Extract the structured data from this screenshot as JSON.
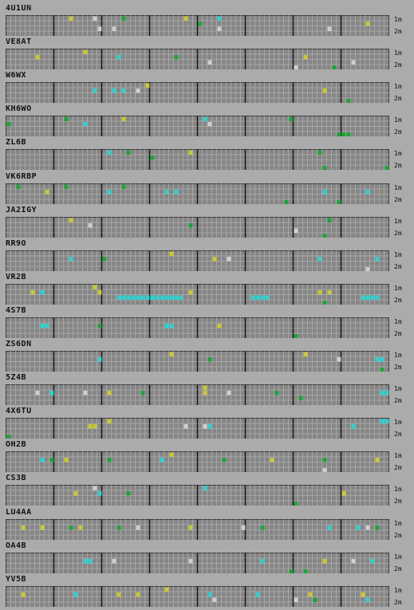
{
  "colors": {
    "cell": "#868686",
    "cell_line": "#a6a6a6",
    "group_divider": "#141414",
    "yellow": "#c9c934",
    "cyan": "#2ed0d0",
    "green": "#21a23a",
    "pale": "#d0d0d0",
    "dark_green": "#0e7a3a"
  },
  "bands": [
    "1m",
    "2m"
  ],
  "stations": [
    {
      "call": "4U1UN",
      "marks": [
        [
          13,
          0,
          "y"
        ],
        [
          18,
          0,
          "p"
        ],
        [
          24,
          0,
          "g"
        ],
        [
          37,
          0,
          "y"
        ],
        [
          40,
          1,
          "g"
        ],
        [
          44,
          0,
          "c"
        ],
        [
          19,
          2,
          "p"
        ],
        [
          22,
          2,
          "p"
        ],
        [
          44,
          2,
          "p"
        ],
        [
          67,
          2,
          "p"
        ],
        [
          75,
          1,
          "y"
        ]
      ]
    },
    {
      "call": "VE8AT",
      "marks": [
        [
          6,
          1,
          "y"
        ],
        [
          16,
          0,
          "y"
        ],
        [
          23,
          1,
          "c"
        ],
        [
          35,
          1,
          "g"
        ],
        [
          42,
          2,
          "p"
        ],
        [
          62,
          1,
          "y"
        ],
        [
          72,
          2,
          "p"
        ],
        [
          60,
          3,
          "p"
        ],
        [
          68,
          3,
          "g"
        ]
      ]
    },
    {
      "call": "W6WX",
      "marks": [
        [
          18,
          1,
          "c"
        ],
        [
          22,
          1,
          "c"
        ],
        [
          24,
          1,
          "c"
        ],
        [
          27,
          1,
          "p"
        ],
        [
          29,
          0,
          "y"
        ],
        [
          66,
          1,
          "y"
        ],
        [
          71,
          3,
          "g"
        ]
      ]
    },
    {
      "call": "KH6WO",
      "marks": [
        [
          0,
          1,
          "g"
        ],
        [
          12,
          0,
          "g"
        ],
        [
          16,
          1,
          "c"
        ],
        [
          24,
          0,
          "y"
        ],
        [
          41,
          0,
          "c"
        ],
        [
          42,
          1,
          "p"
        ],
        [
          59,
          0,
          "g"
        ],
        [
          69,
          3,
          "g"
        ],
        [
          70,
          3,
          "g"
        ],
        [
          71,
          3,
          "g"
        ]
      ]
    },
    {
      "call": "ZL6B",
      "marks": [
        [
          21,
          0,
          "c"
        ],
        [
          25,
          0,
          "g"
        ],
        [
          30,
          1,
          "g"
        ],
        [
          38,
          0,
          "y"
        ],
        [
          65,
          0,
          "g"
        ],
        [
          66,
          3,
          "g"
        ],
        [
          79,
          3,
          "g"
        ]
      ]
    },
    {
      "call": "VK6RBP",
      "marks": [
        [
          2,
          0,
          "g"
        ],
        [
          8,
          1,
          "y"
        ],
        [
          12,
          0,
          "g"
        ],
        [
          21,
          1,
          "c"
        ],
        [
          24,
          0,
          "g"
        ],
        [
          33,
          1,
          "c"
        ],
        [
          35,
          1,
          "c"
        ],
        [
          58,
          3,
          "g"
        ],
        [
          66,
          1,
          "c"
        ],
        [
          69,
          3,
          "g"
        ],
        [
          75,
          1,
          "c"
        ]
      ]
    },
    {
      "call": "JA2IGY",
      "marks": [
        [
          13,
          0,
          "y"
        ],
        [
          17,
          1,
          "p"
        ],
        [
          38,
          1,
          "g"
        ],
        [
          67,
          0,
          "g"
        ],
        [
          66,
          3,
          "g"
        ],
        [
          60,
          2,
          "p"
        ]
      ]
    },
    {
      "call": "RR9O",
      "marks": [
        [
          13,
          1,
          "c"
        ],
        [
          20,
          1,
          "g"
        ],
        [
          34,
          0,
          "y"
        ],
        [
          43,
          1,
          "y"
        ],
        [
          46,
          1,
          "p"
        ],
        [
          65,
          1,
          "c"
        ],
        [
          77,
          1,
          "c"
        ],
        [
          75,
          3,
          "p"
        ]
      ]
    },
    {
      "call": "VR2B",
      "marks": [
        [
          5,
          1,
          "y"
        ],
        [
          7,
          1,
          "c"
        ],
        [
          18,
          0,
          "y"
        ],
        [
          19,
          1,
          "y"
        ],
        [
          23,
          2,
          "c"
        ],
        [
          24,
          2,
          "c"
        ],
        [
          25,
          2,
          "c"
        ],
        [
          26,
          2,
          "c"
        ],
        [
          27,
          2,
          "c"
        ],
        [
          28,
          2,
          "c"
        ],
        [
          29,
          2,
          "c"
        ],
        [
          30,
          2,
          "c"
        ],
        [
          31,
          2,
          "c"
        ],
        [
          32,
          2,
          "c"
        ],
        [
          33,
          2,
          "c"
        ],
        [
          34,
          2,
          "c"
        ],
        [
          35,
          2,
          "c"
        ],
        [
          36,
          2,
          "c"
        ],
        [
          38,
          1,
          "y"
        ],
        [
          51,
          2,
          "c"
        ],
        [
          52,
          2,
          "c"
        ],
        [
          53,
          2,
          "c"
        ],
        [
          54,
          2,
          "c"
        ],
        [
          65,
          1,
          "y"
        ],
        [
          67,
          1,
          "y"
        ],
        [
          74,
          2,
          "c"
        ],
        [
          75,
          2,
          "c"
        ],
        [
          76,
          2,
          "c"
        ],
        [
          77,
          2,
          "c"
        ],
        [
          66,
          3,
          "g"
        ]
      ]
    },
    {
      "call": "4S7B",
      "marks": [
        [
          7,
          1,
          "c"
        ],
        [
          8,
          1,
          "c"
        ],
        [
          19,
          1,
          "g"
        ],
        [
          33,
          1,
          "c"
        ],
        [
          34,
          1,
          "c"
        ],
        [
          44,
          1,
          "y"
        ],
        [
          60,
          3,
          "g"
        ]
      ]
    },
    {
      "call": "ZS6DN",
      "marks": [
        [
          19,
          1,
          "c"
        ],
        [
          34,
          0,
          "y"
        ],
        [
          42,
          1,
          "g"
        ],
        [
          62,
          0,
          "y"
        ],
        [
          69,
          1,
          "p"
        ],
        [
          77,
          1,
          "c"
        ],
        [
          78,
          1,
          "c"
        ],
        [
          78,
          3,
          "g"
        ]
      ]
    },
    {
      "call": "5Z4B",
      "marks": [
        [
          6,
          1,
          "p"
        ],
        [
          9,
          1,
          "c"
        ],
        [
          16,
          1,
          "p"
        ],
        [
          21,
          1,
          "y"
        ],
        [
          28,
          1,
          "g"
        ],
        [
          41,
          1,
          "y"
        ],
        [
          41,
          0,
          "y"
        ],
        [
          46,
          1,
          "p"
        ],
        [
          56,
          1,
          "g"
        ],
        [
          61,
          2,
          "g"
        ],
        [
          78,
          1,
          "c"
        ],
        [
          79,
          1,
          "c"
        ]
      ]
    },
    {
      "call": "4X6TU",
      "marks": [
        [
          17,
          1,
          "y"
        ],
        [
          18,
          1,
          "y"
        ],
        [
          21,
          0,
          "y"
        ],
        [
          37,
          1,
          "p"
        ],
        [
          41,
          1,
          "p"
        ],
        [
          42,
          1,
          "c"
        ],
        [
          72,
          1,
          "c"
        ],
        [
          78,
          0,
          "c"
        ],
        [
          79,
          0,
          "c"
        ],
        [
          0,
          3,
          "g"
        ]
      ]
    },
    {
      "call": "OH2B",
      "marks": [
        [
          7,
          1,
          "c"
        ],
        [
          9,
          1,
          "g"
        ],
        [
          12,
          1,
          "y"
        ],
        [
          21,
          1,
          "g"
        ],
        [
          32,
          1,
          "c"
        ],
        [
          34,
          0,
          "y"
        ],
        [
          45,
          1,
          "g"
        ],
        [
          55,
          1,
          "y"
        ],
        [
          66,
          1,
          "g"
        ],
        [
          77,
          1,
          "y"
        ],
        [
          66,
          3,
          "p"
        ]
      ]
    },
    {
      "call": "CS3B",
      "marks": [
        [
          14,
          1,
          "y"
        ],
        [
          18,
          0,
          "p"
        ],
        [
          19,
          1,
          "c"
        ],
        [
          25,
          1,
          "g"
        ],
        [
          41,
          0,
          "c"
        ],
        [
          60,
          3,
          "g"
        ],
        [
          70,
          1,
          "y"
        ]
      ]
    },
    {
      "call": "LU4AA",
      "marks": [
        [
          3,
          1,
          "y"
        ],
        [
          7,
          1,
          "y"
        ],
        [
          13,
          1,
          "g"
        ],
        [
          15,
          1,
          "y"
        ],
        [
          23,
          1,
          "g"
        ],
        [
          27,
          1,
          "p"
        ],
        [
          38,
          1,
          "y"
        ],
        [
          49,
          1,
          "p"
        ],
        [
          53,
          1,
          "g"
        ],
        [
          67,
          1,
          "c"
        ],
        [
          73,
          1,
          "c"
        ],
        [
          75,
          1,
          "p"
        ],
        [
          77,
          1,
          "g"
        ]
      ]
    },
    {
      "call": "OA4B",
      "marks": [
        [
          16,
          1,
          "c"
        ],
        [
          17,
          1,
          "c"
        ],
        [
          22,
          1,
          "p"
        ],
        [
          38,
          1,
          "p"
        ],
        [
          53,
          1,
          "c"
        ],
        [
          59,
          3,
          "g"
        ],
        [
          62,
          3,
          "g"
        ],
        [
          66,
          1,
          "y"
        ],
        [
          72,
          1,
          "p"
        ],
        [
          76,
          1,
          "c"
        ]
      ]
    },
    {
      "call": "YV5B",
      "marks": [
        [
          3,
          1,
          "y"
        ],
        [
          14,
          1,
          "c"
        ],
        [
          23,
          1,
          "y"
        ],
        [
          27,
          1,
          "y"
        ],
        [
          33,
          0,
          "y"
        ],
        [
          42,
          1,
          "c"
        ],
        [
          43,
          2,
          "p"
        ],
        [
          52,
          1,
          "c"
        ],
        [
          60,
          2,
          "p"
        ],
        [
          63,
          1,
          "y"
        ],
        [
          64,
          2,
          "g"
        ],
        [
          74,
          1,
          "y"
        ],
        [
          75,
          2,
          "c"
        ]
      ]
    }
  ]
}
